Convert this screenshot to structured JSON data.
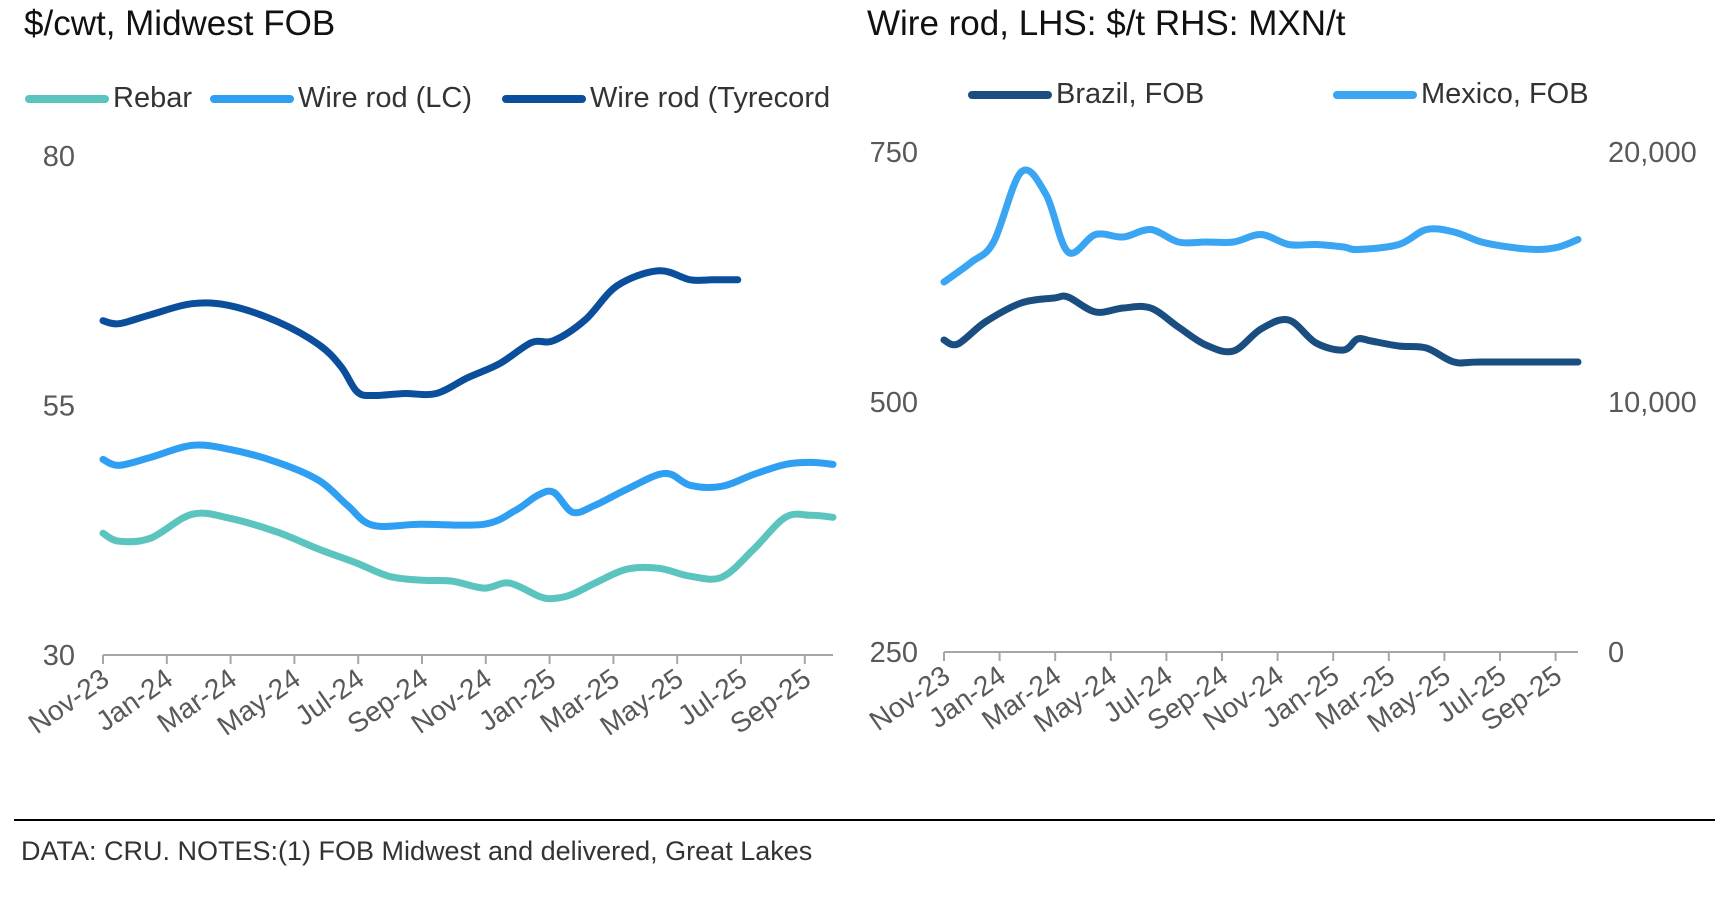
{
  "footer": "DATA:  CRU. NOTES:(1) FOB Midwest and delivered, Great Lakes",
  "chart_data": [
    {
      "type": "line",
      "title": "$/cwt, Midwest FOB",
      "xlabel": "",
      "ylabel": "$/cwt",
      "ylim": [
        30,
        80
      ],
      "yticks": [
        "80",
        "55",
        "30"
      ],
      "xlim": [
        0,
        23
      ],
      "xticks": [
        "Nov-23",
        "Jan-24",
        "Mar-24",
        "May-24",
        "Jul-24",
        "Sep-24",
        "Nov-24",
        "Jan-25",
        "Mar-25",
        "May-25",
        "Jul-25",
        "Sep-25"
      ],
      "legend_position": "top-left",
      "series": [
        {
          "name": "Rebar",
          "color": "#5BC4BF",
          "x": [
            0,
            0.5,
            1.5,
            2.8,
            4,
            5.5,
            6.8,
            8,
            9,
            10,
            11,
            12,
            12.8,
            13.8,
            14.3,
            14.8,
            15.5,
            16.5,
            17.5,
            18.5,
            19.5,
            20.5,
            21.5,
            22.3,
            23
          ],
          "values": [
            42.2,
            41.4,
            41.7,
            44.1,
            43.7,
            42.3,
            40.6,
            39.2,
            37.9,
            37.5,
            37.4,
            36.7,
            37.2,
            35.8,
            35.7,
            36.1,
            37.2,
            38.6,
            38.7,
            37.9,
            37.8,
            40.6,
            43.8,
            44.0,
            43.8
          ]
        },
        {
          "name": "Wire rod (LC)",
          "color": "#2E9FF2",
          "x": [
            0,
            0.5,
            1.5,
            2.8,
            4,
            5.5,
            6.8,
            7.7,
            8.5,
            10,
            12,
            13,
            13.7,
            14.2,
            14.8,
            15.5,
            16.5,
            17.7,
            18.5,
            19.5,
            20.5,
            21.5,
            22.3,
            23
          ],
          "values": [
            49.6,
            49.0,
            49.8,
            51.0,
            50.6,
            49.3,
            47.5,
            45.0,
            43.0,
            43.1,
            43.1,
            44.5,
            46.0,
            46.3,
            44.3,
            45.0,
            46.6,
            48.2,
            47.0,
            46.9,
            48.1,
            49.1,
            49.3,
            49.1
          ]
        },
        {
          "name": "Wire rod (Tyrecord",
          "color": "#0B4E9B",
          "x": [
            0,
            0.5,
            1.5,
            2.8,
            4,
            5.5,
            6.8,
            7.5,
            8,
            8.5,
            9.5,
            10.5,
            11.5,
            12.5,
            13.5,
            14.2,
            15.2,
            16.2,
            17.5,
            18.5,
            19.2,
            20
          ],
          "values": [
            63.5,
            63.2,
            64.1,
            65.2,
            65.0,
            63.4,
            61.1,
            58.9,
            56.4,
            56.0,
            56.2,
            56.2,
            57.8,
            59.2,
            61.3,
            61.5,
            63.6,
            67.0,
            68.5,
            67.6,
            67.6,
            67.6
          ]
        }
      ]
    },
    {
      "type": "line",
      "title": "Wire rod, LHS: $/t  RHS: MXN/t",
      "xlabel": "",
      "ylabel": "$/t",
      "y2label": "MXN/t",
      "ylim": [
        250,
        750
      ],
      "yticks": [
        "750",
        "500",
        "250"
      ],
      "y2lim": [
        0,
        20000
      ],
      "y2ticks": [
        "20,000",
        "10,000",
        "0"
      ],
      "xlim": [
        0,
        23
      ],
      "xticks": [
        "Nov-23",
        "Jan-24",
        "Mar-24",
        "May-24",
        "Jul-24",
        "Sep-24",
        "Nov-24",
        "Jan-25",
        "Mar-25",
        "May-25",
        "Jul-25",
        "Sep-25"
      ],
      "legend_position": "top",
      "series": [
        {
          "name": "Brazil, FOB",
          "axis": "left",
          "color": "#1A4E80",
          "x": [
            0,
            0.5,
            1.5,
            2.8,
            4,
            4.5,
            5.5,
            6.5,
            7.5,
            8.5,
            9.5,
            10.5,
            11.5,
            12.5,
            13.5,
            14.5,
            15,
            15.5,
            16.5,
            17.5,
            18.5,
            19.5,
            23
          ],
          "values": [
            562,
            558,
            580,
            599,
            604,
            605,
            590,
            594,
            594,
            575,
            557,
            551,
            573,
            582,
            559,
            552,
            563,
            561,
            556,
            554,
            540,
            540,
            540
          ]
        },
        {
          "name": "Mexico, FOB",
          "axis": "right",
          "color": "#3AA5F2",
          "x": [
            0,
            1,
            1.8,
            2.8,
            3.7,
            4.5,
            5.5,
            6.5,
            7.5,
            8.5,
            9.5,
            10.5,
            11.5,
            12.5,
            13.5,
            14.5,
            15,
            16.5,
            17.5,
            18.5,
            19.5,
            20.5,
            21.5,
            22.3,
            23
          ],
          "values": [
            14800,
            15600,
            16400,
            19200,
            18300,
            16000,
            16700,
            16600,
            16900,
            16400,
            16400,
            16400,
            16700,
            16300,
            16300,
            16200,
            16100,
            16300,
            16900,
            16800,
            16400,
            16200,
            16100,
            16200,
            16500
          ]
        }
      ]
    }
  ]
}
